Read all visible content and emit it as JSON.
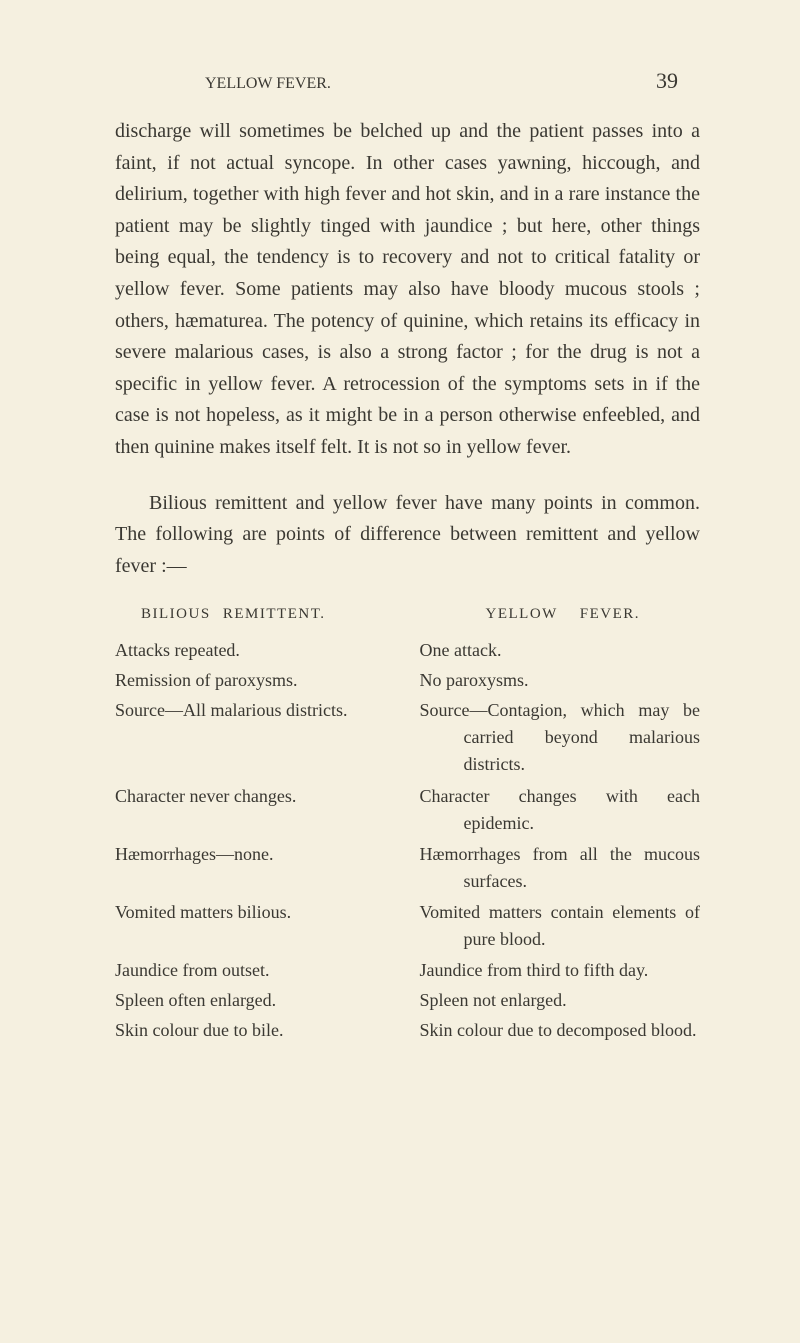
{
  "page": {
    "running_title": "YELLOW FEVER.",
    "page_number": "39",
    "background_color": "#f5f0e0",
    "text_color": "#3a3832",
    "body_fontsize": 20
  },
  "paragraphs": {
    "p1": "discharge will sometimes be belched up and the patient passes into a faint, if not actual syncope. In other cases yawning, hiccough, and delirium, together with high fever and hot skin, and in a rare instance the patient may be slightly tinged with jaundice ; but here, other things being equal, the tendency is to recovery and not to critical fatality or yellow fever. Some patients may also have bloody mucous stools ; others, hæmaturea. The potency of quinine, which retains its efficacy in severe malarious cases, is also a strong factor ; for the drug is not a specific in yellow fever. A retrocession of the symptoms sets in if the case is not hopeless, as it might be in a person otherwise enfeebled, and then quinine makes itself felt. It is not so in yellow fever.",
    "p2": "Bilious remittent and yellow fever have many points in common. The following are points of difference between remittent and yellow fever :—"
  },
  "table": {
    "header_left": "BILIOUS REMITTENT.",
    "header_right": "YELLOW FEVER.",
    "rows": [
      {
        "left": "Attacks repeated.",
        "right": "One attack."
      },
      {
        "left": "Remission of paroxysms.",
        "right": "No paroxysms."
      },
      {
        "left": "Source—All malarious districts.",
        "right": "Source—Contagion, which may be carried beyond malarious districts."
      },
      {
        "left": "Character never changes.",
        "right": "Character changes with each epidemic."
      },
      {
        "left": "Hæmorrhages—none.",
        "right": "Hæmorrhages from all the mucous surfaces."
      },
      {
        "left": "Vomited matters bilious.",
        "right": "Vomited matters contain elements of pure blood."
      },
      {
        "left": "Jaundice from outset.",
        "right": "Jaundice from third to fifth day."
      },
      {
        "left": "Spleen often enlarged.",
        "right": "Spleen not enlarged."
      },
      {
        "left": "Skin colour due to bile.",
        "right": "Skin colour due to decomposed blood."
      }
    ]
  }
}
